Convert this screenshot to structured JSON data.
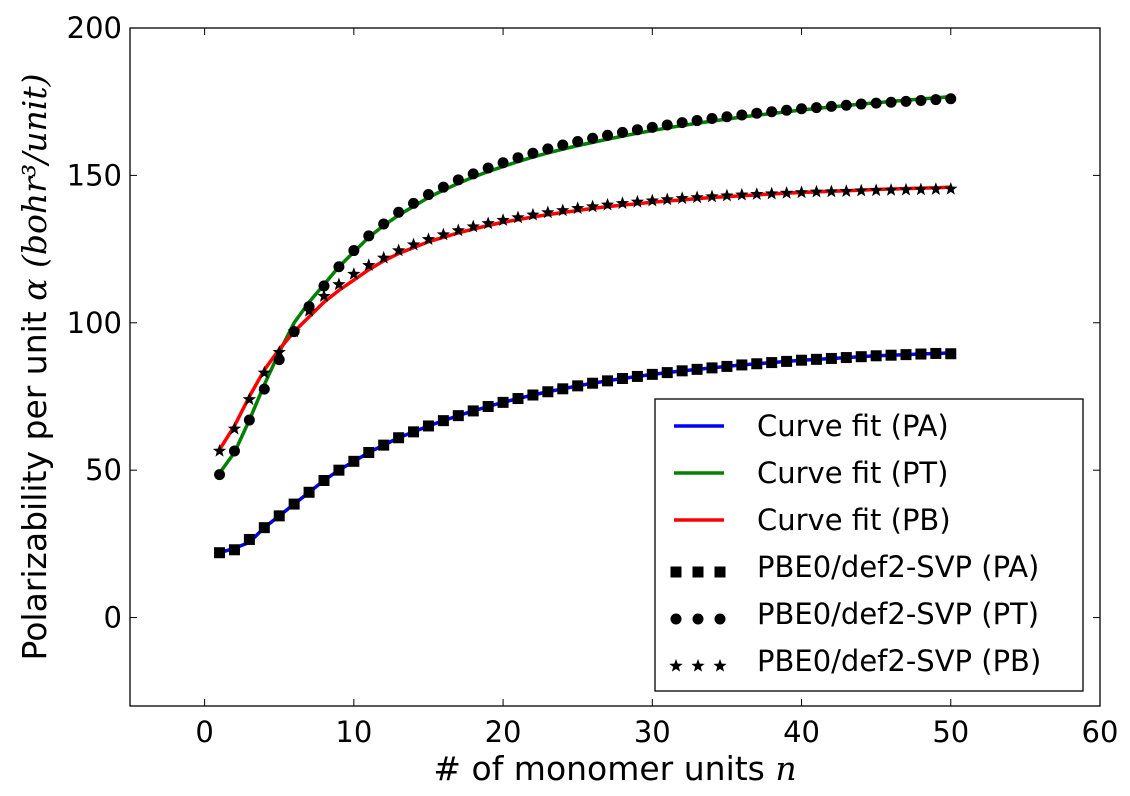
{
  "chart_data": {
    "type": "line",
    "xlabel": "# of monomer units",
    "xlabel_var": "n",
    "ylabel": "Polarizability per unit",
    "ylabel_var": "α",
    "ylabel_unit": "(bohr³/unit)",
    "xlim": [
      -5,
      60
    ],
    "ylim": [
      -30,
      200
    ],
    "xticks": [
      0,
      10,
      20,
      30,
      40,
      50,
      60
    ],
    "yticks": [
      0,
      50,
      100,
      150,
      200
    ],
    "grid": false,
    "legend_position": "lower-right",
    "series": [
      {
        "name": "Curve fit (PA)",
        "kind": "line",
        "color": "#0000ff",
        "x": [
          1,
          2,
          3,
          4,
          5,
          6,
          7,
          8,
          9,
          10,
          11,
          12,
          13,
          14,
          15,
          16,
          17,
          18,
          19,
          20,
          21,
          22,
          23,
          24,
          25,
          26,
          27,
          28,
          29,
          30,
          31,
          32,
          33,
          34,
          35,
          36,
          37,
          38,
          39,
          40,
          41,
          42,
          43,
          44,
          45,
          46,
          47,
          48,
          49,
          50
        ],
        "y": [
          22,
          23.5,
          25.5,
          30.5,
          34.5,
          38.5,
          42.5,
          46.5,
          50,
          53,
          56,
          58.5,
          61,
          63,
          65,
          66.8,
          68.5,
          70.1,
          71.6,
          73,
          74.3,
          75.5,
          76.6,
          77.6,
          78.6,
          79.5,
          80.3,
          81.1,
          81.8,
          82.5,
          83.1,
          83.7,
          84.2,
          84.7,
          85.2,
          85.7,
          86.1,
          86.5,
          86.9,
          87.3,
          87.6,
          87.9,
          88.2,
          88.5,
          88.8,
          89,
          89.2,
          89.4,
          89.6,
          89.8
        ]
      },
      {
        "name": "Curve fit (PT)",
        "kind": "line",
        "color": "#008000",
        "x": [
          1,
          2,
          3,
          4,
          5,
          6,
          7,
          8,
          9,
          10,
          11,
          12,
          13,
          14,
          15,
          16,
          17,
          18,
          19,
          20,
          21,
          22,
          23,
          24,
          25,
          26,
          27,
          28,
          29,
          30,
          31,
          32,
          33,
          34,
          35,
          36,
          37,
          38,
          39,
          40,
          41,
          42,
          43,
          44,
          45,
          46,
          47,
          48,
          49,
          50
        ],
        "y": [
          49,
          56,
          67,
          79,
          90,
          100,
          107,
          113,
          119,
          124,
          129,
          133,
          136.5,
          139.5,
          142.5,
          145,
          147.3,
          149.4,
          151.3,
          153,
          154.7,
          156.2,
          157.6,
          158.9,
          160.1,
          161.2,
          162.3,
          163.3,
          164.3,
          165.2,
          166.1,
          166.9,
          167.7,
          168.4,
          169.1,
          169.8,
          170.4,
          171,
          171.6,
          172.2,
          172.7,
          173.2,
          173.7,
          174.2,
          174.6,
          175.1,
          175.5,
          175.9,
          176.3,
          176.7
        ]
      },
      {
        "name": "Curve fit (PB)",
        "kind": "line",
        "color": "#ff0000",
        "x": [
          1,
          2,
          3,
          4,
          5,
          6,
          7,
          8,
          9,
          10,
          11,
          12,
          13,
          14,
          15,
          16,
          17,
          18,
          19,
          20,
          21,
          22,
          23,
          24,
          25,
          26,
          27,
          28,
          29,
          30,
          31,
          32,
          33,
          34,
          35,
          36,
          37,
          38,
          39,
          40,
          41,
          42,
          43,
          44,
          45,
          46,
          47,
          48,
          49,
          50
        ],
        "y": [
          57,
          65,
          75,
          84,
          91,
          97,
          102,
          107,
          111,
          114.5,
          118,
          121,
          123.5,
          125.5,
          127.5,
          129,
          130.5,
          131.8,
          133,
          134.1,
          135,
          135.9,
          136.7,
          137.4,
          138.1,
          138.8,
          139.4,
          139.9,
          140.4,
          140.9,
          141.3,
          141.7,
          142.1,
          142.5,
          142.8,
          143.1,
          143.4,
          143.7,
          144,
          144.2,
          144.4,
          144.6,
          144.8,
          145,
          145.2,
          145.4,
          145.5,
          145.7,
          145.8,
          146
        ]
      },
      {
        "name": "PBE0/def2-SVP (PA)",
        "kind": "marker",
        "marker": "square",
        "color": "#000000",
        "x": [
          1,
          2,
          3,
          4,
          5,
          6,
          7,
          8,
          9,
          10,
          11,
          12,
          13,
          14,
          15,
          16,
          17,
          18,
          19,
          20,
          21,
          22,
          23,
          24,
          25,
          26,
          27,
          28,
          29,
          30,
          31,
          32,
          33,
          34,
          35,
          36,
          37,
          38,
          39,
          40,
          41,
          42,
          43,
          44,
          45,
          46,
          47,
          48,
          49,
          50
        ],
        "y": [
          22,
          23,
          26.5,
          30.5,
          34.5,
          38.5,
          42.5,
          46.5,
          50,
          53,
          56,
          58.5,
          61,
          63,
          65,
          66.8,
          68.5,
          70.1,
          71.6,
          73,
          74.3,
          75.5,
          76.6,
          77.6,
          78.6,
          79.5,
          80.3,
          81.1,
          81.8,
          82.5,
          83.1,
          83.7,
          84.2,
          84.7,
          85.2,
          85.7,
          86.1,
          86.5,
          86.9,
          87.3,
          87.6,
          87.9,
          88.2,
          88.5,
          88.8,
          89,
          89.2,
          89.4,
          89.6,
          89.5
        ]
      },
      {
        "name": "PBE0/def2-SVP (PT)",
        "kind": "marker",
        "marker": "circle",
        "color": "#000000",
        "x": [
          1,
          2,
          3,
          4,
          5,
          6,
          7,
          8,
          9,
          10,
          11,
          12,
          13,
          14,
          15,
          16,
          17,
          18,
          19,
          20,
          21,
          22,
          23,
          24,
          25,
          26,
          27,
          28,
          29,
          30,
          31,
          32,
          33,
          34,
          35,
          36,
          37,
          38,
          39,
          40,
          41,
          42,
          43,
          44,
          45,
          46,
          47,
          48,
          49,
          50
        ],
        "y": [
          48.5,
          56.5,
          67,
          77.5,
          87.5,
          97,
          105.5,
          112.5,
          119,
          124.5,
          129.5,
          133.5,
          137.5,
          140.5,
          143.5,
          146,
          148.5,
          150.5,
          152.5,
          154.3,
          156,
          157.5,
          159,
          160.3,
          161.5,
          162.6,
          163.6,
          164.6,
          165.5,
          166.3,
          167.1,
          167.9,
          168.6,
          169.3,
          169.9,
          170.5,
          171.1,
          171.6,
          172.1,
          172.6,
          173,
          173.4,
          173.8,
          174.2,
          174.5,
          174.8,
          175.1,
          175.4,
          175.7,
          176
        ]
      },
      {
        "name": "PBE0/def2-SVP (PB)",
        "kind": "marker",
        "marker": "star",
        "color": "#000000",
        "x": [
          1,
          2,
          3,
          4,
          5,
          6,
          7,
          8,
          9,
          10,
          11,
          12,
          13,
          14,
          15,
          16,
          17,
          18,
          19,
          20,
          21,
          22,
          23,
          24,
          25,
          26,
          27,
          28,
          29,
          30,
          31,
          32,
          33,
          34,
          35,
          36,
          37,
          38,
          39,
          40,
          41,
          42,
          43,
          44,
          45,
          46,
          47,
          48,
          49,
          50
        ],
        "y": [
          56.5,
          64,
          74,
          83,
          90,
          97,
          104,
          109,
          113,
          116.5,
          119.5,
          122,
          124.5,
          126.5,
          128.3,
          129.9,
          131.3,
          132.6,
          133.7,
          134.8,
          135.7,
          136.6,
          137.4,
          138.1,
          138.8,
          139.4,
          140,
          140.5,
          141,
          141.4,
          141.8,
          142.2,
          142.5,
          142.8,
          143.1,
          143.4,
          143.6,
          143.8,
          144,
          144.2,
          144.4,
          144.5,
          144.6,
          144.8,
          144.9,
          145,
          145.1,
          145.2,
          145.3,
          145.4
        ]
      }
    ]
  }
}
